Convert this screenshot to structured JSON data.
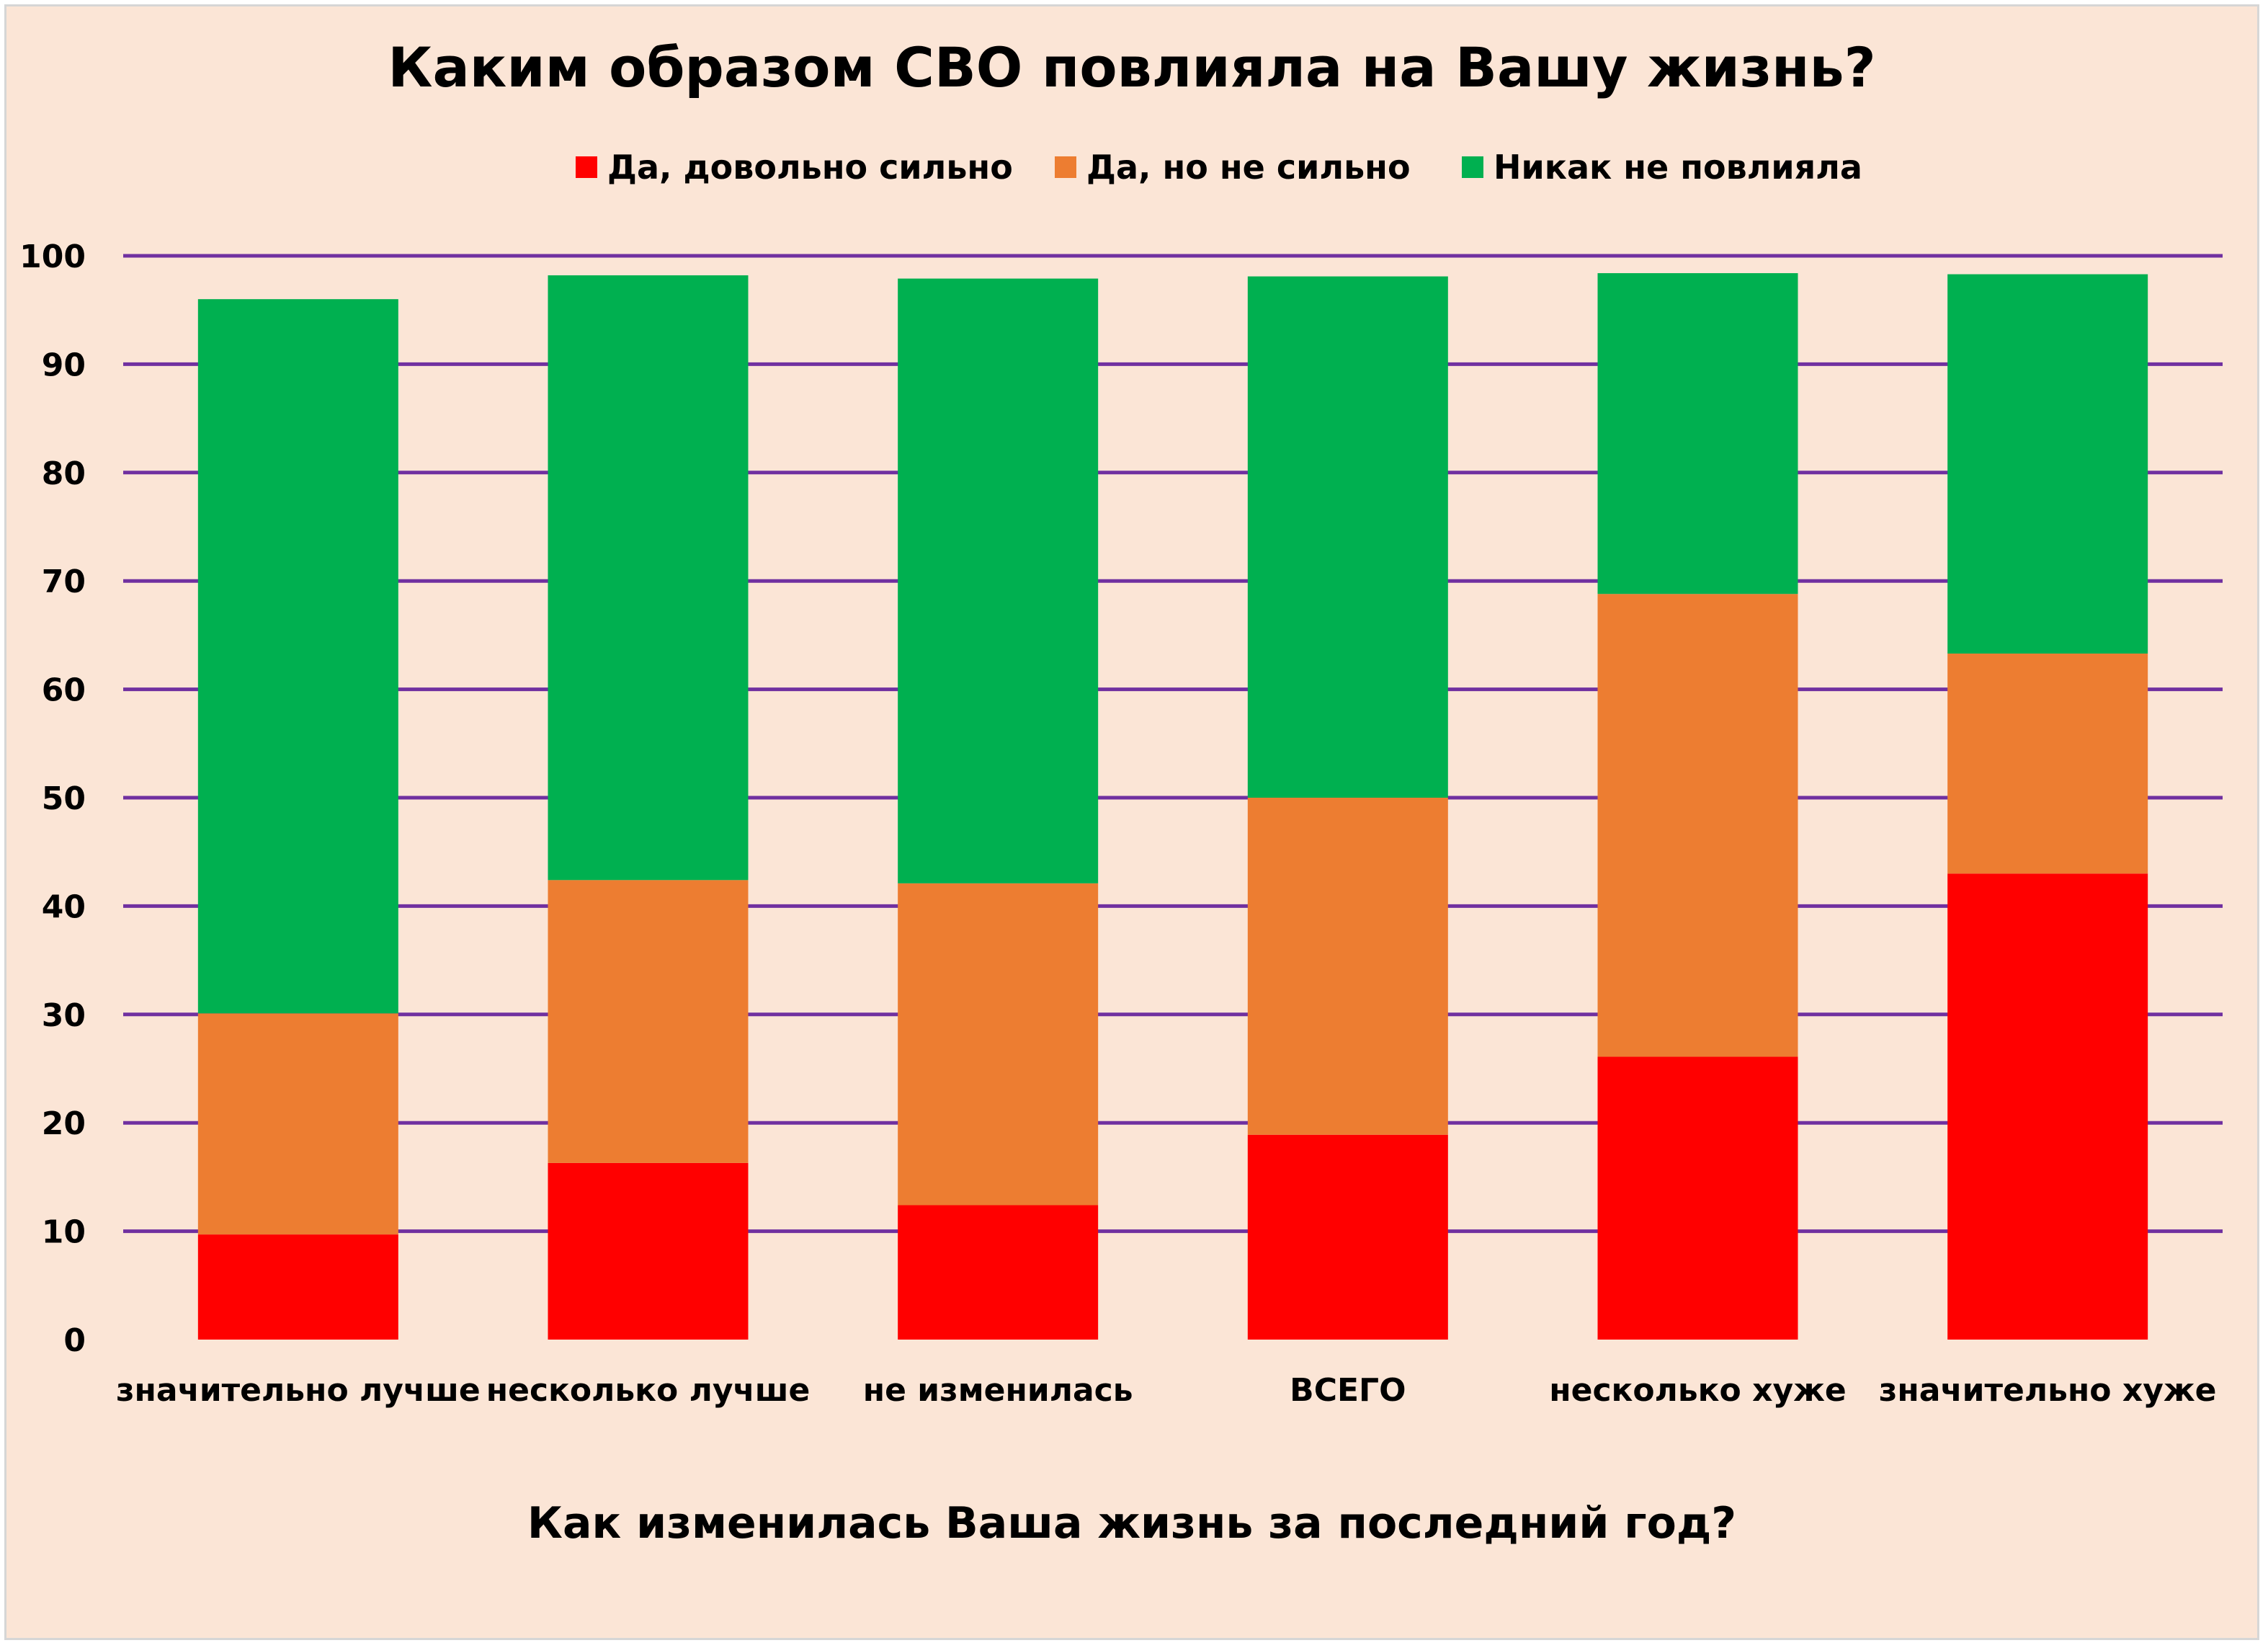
{
  "chart_data": {
    "type": "bar",
    "stacked": true,
    "title": "Каким образом СВО повлияла на Вашу жизнь?",
    "xlabel": "Как изменилась Ваша жизнь за последний год?",
    "ylabel": "",
    "ylim": [
      0,
      100
    ],
    "yticks": [
      0,
      10,
      20,
      30,
      40,
      50,
      60,
      70,
      80,
      90,
      100
    ],
    "grid": true,
    "legend_position": "top",
    "categories": [
      "значительно лучше",
      "несколько лучше",
      "не изменилась",
      "ВСЕГО",
      "несколько хуже",
      "значительно хуже"
    ],
    "series": [
      {
        "name": "Да, довольно сильно",
        "color": "#ff0000",
        "values": [
          9.7,
          16.3,
          12.4,
          18.9,
          26.1,
          43.0
        ]
      },
      {
        "name": "Да, но не сильно",
        "color": "#ed7d31",
        "values": [
          20.4,
          26.1,
          29.7,
          31.1,
          42.7,
          20.3
        ]
      },
      {
        "name": "Никак не повлияла",
        "color": "#00b050",
        "values": [
          65.9,
          55.8,
          55.8,
          48.1,
          29.6,
          35.0
        ]
      }
    ],
    "gridline_color": "#7030a0"
  }
}
